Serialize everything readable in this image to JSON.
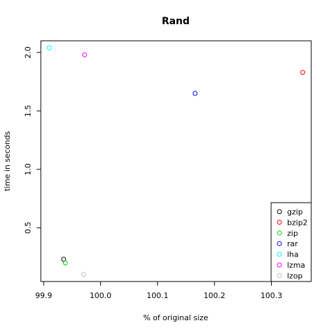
{
  "chart_data": {
    "type": "scatter",
    "title": "Rand",
    "xlabel": "% of original size",
    "ylabel": "time in seconds",
    "xlim": [
      99.895,
      100.37
    ],
    "ylim": [
      0.04,
      2.1
    ],
    "xticks": [
      {
        "value": 99.9,
        "label": "99.9"
      },
      {
        "value": 100.0,
        "label": "100.0"
      },
      {
        "value": 100.1,
        "label": "100.1"
      },
      {
        "value": 100.2,
        "label": "100.2"
      },
      {
        "value": 100.3,
        "label": "100.3"
      }
    ],
    "yticks": [
      {
        "value": 0.5,
        "label": "0.5"
      },
      {
        "value": 1.0,
        "label": "1.0"
      },
      {
        "value": 1.5,
        "label": "1.5"
      },
      {
        "value": 2.0,
        "label": "2.0"
      }
    ],
    "legend_position": "bottom-right",
    "grid": false,
    "series": [
      {
        "name": "gzip",
        "color": "#000000",
        "x": 99.935,
        "y": 0.23
      },
      {
        "name": "bzip2",
        "color": "#ff0000",
        "x": 100.355,
        "y": 1.83
      },
      {
        "name": "zip",
        "color": "#00cd00",
        "x": 99.938,
        "y": 0.2
      },
      {
        "name": "rar",
        "color": "#0000ff",
        "x": 100.166,
        "y": 1.65
      },
      {
        "name": "lha",
        "color": "#00ffff",
        "x": 99.91,
        "y": 2.04
      },
      {
        "name": "lzma",
        "color": "#ff00ff",
        "x": 99.972,
        "y": 1.98
      },
      {
        "name": "lzop",
        "color": "#bebebe",
        "x": 99.97,
        "y": 0.1
      }
    ]
  }
}
